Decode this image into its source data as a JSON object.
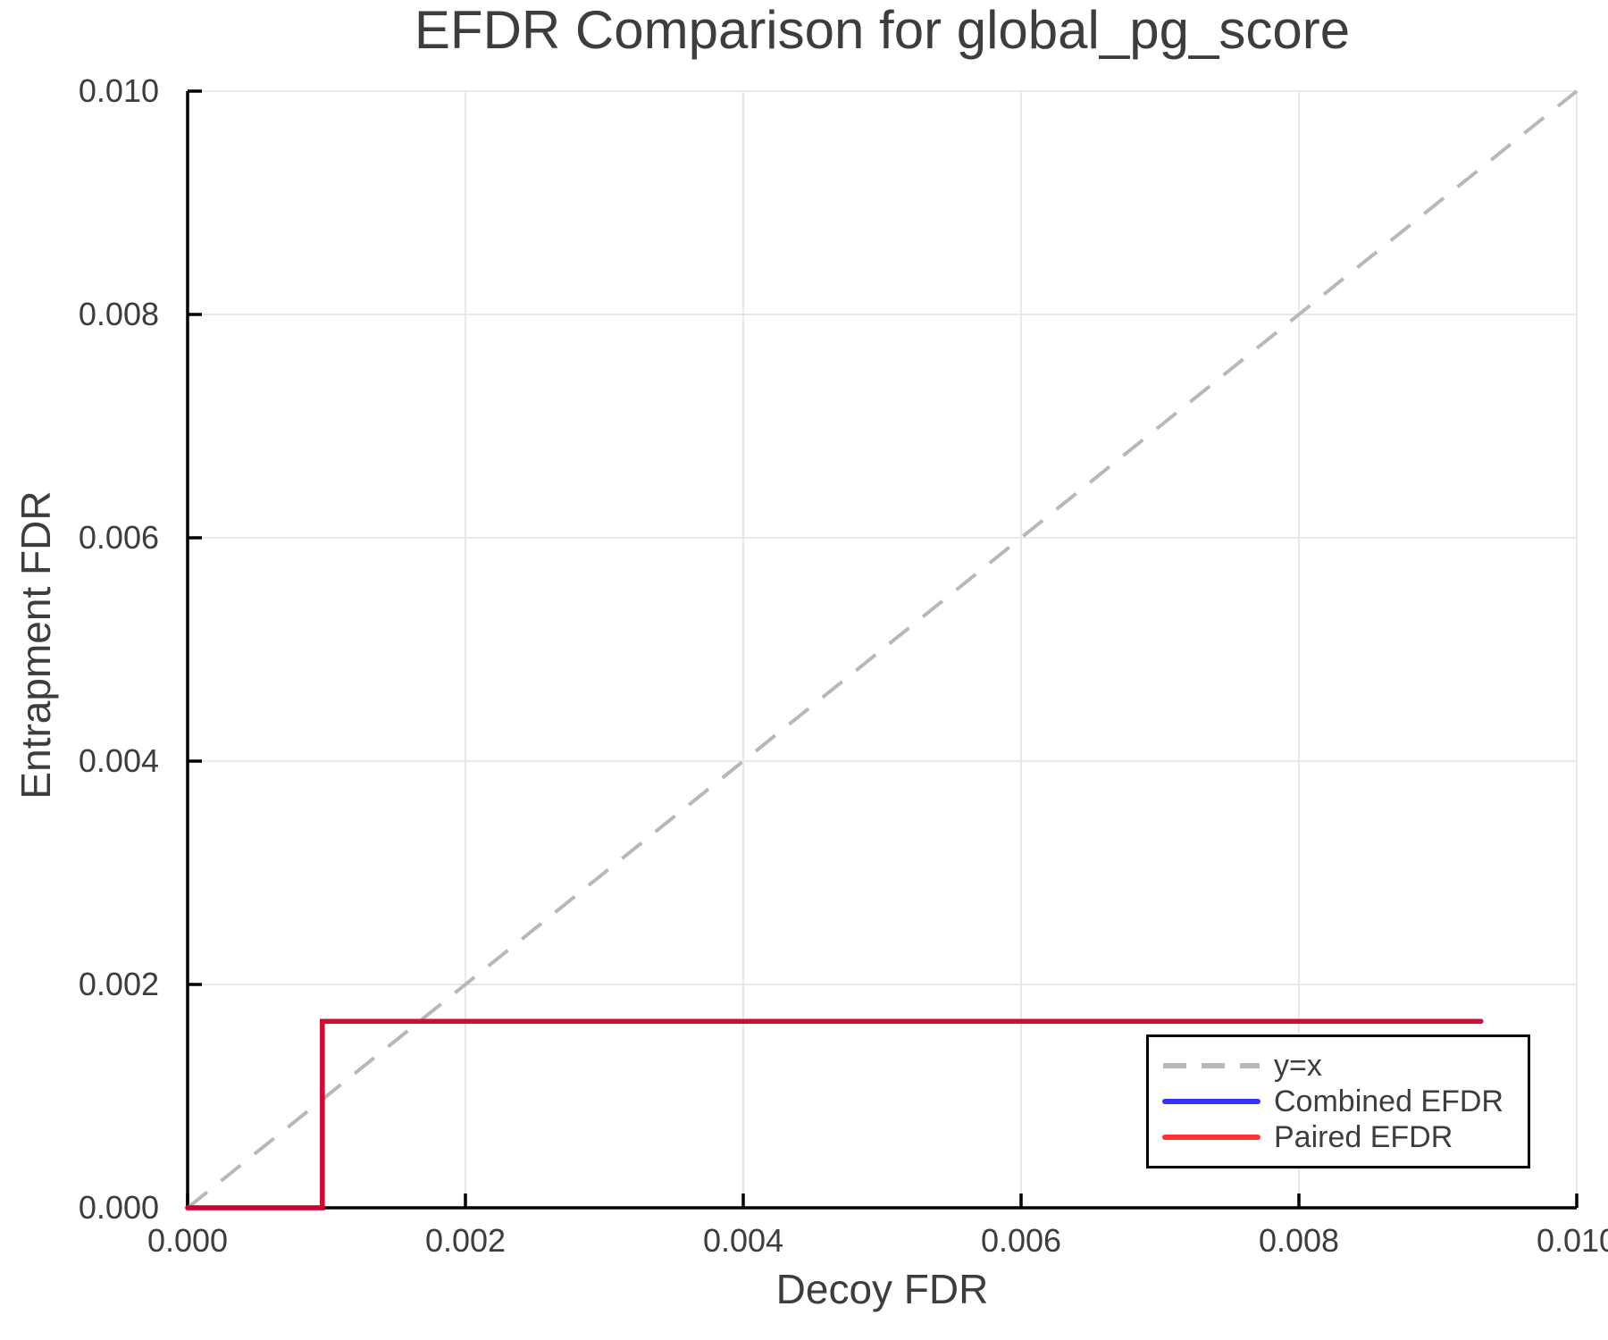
{
  "page": {
    "background": "#ffffff"
  },
  "colors": {
    "text": "#3d3d3d",
    "grid": "#e9e9e9",
    "axis": "#000000",
    "legend_border": "#000000"
  },
  "chart_data": {
    "type": "line",
    "title": "EFDR Comparison for global_pg_score",
    "xlabel": "Decoy FDR",
    "ylabel": "Entrapment FDR",
    "xlim": [
      0.0,
      0.01
    ],
    "ylim": [
      0.0,
      0.01
    ],
    "xticks": {
      "values": [
        0.0,
        0.002,
        0.004,
        0.006,
        0.008,
        0.01
      ],
      "labels": [
        "0.000",
        "0.002",
        "0.004",
        "0.006",
        "0.008",
        "0.010"
      ]
    },
    "yticks": {
      "values": [
        0.0,
        0.002,
        0.004,
        0.006,
        0.008,
        0.01
      ],
      "labels": [
        "0.000",
        "0.002",
        "0.004",
        "0.006",
        "0.008",
        "0.010"
      ]
    },
    "grid": true,
    "tick_direction": "in",
    "legend_position": "lower-right",
    "series": [
      {
        "name": "y=x",
        "color": "#b8b8b8",
        "style": "dashed",
        "opacity": 1,
        "points": [
          [
            0.0,
            0.0
          ],
          [
            0.01,
            0.01
          ]
        ]
      },
      {
        "name": "Combined EFDR",
        "color": "#0000ff",
        "style": "solid",
        "opacity": 0.8,
        "points": [
          [
            0.0,
            0.0
          ],
          [
            0.00097,
            0.0
          ],
          [
            0.00097,
            0.00167
          ],
          [
            0.00931,
            0.00167
          ]
        ]
      },
      {
        "name": "Paired EFDR",
        "color": "#ff0000",
        "style": "solid",
        "opacity": 0.8,
        "points": [
          [
            0.0,
            0.0
          ],
          [
            0.00097,
            0.0
          ],
          [
            0.00097,
            0.00167
          ],
          [
            0.00931,
            0.00167
          ]
        ]
      }
    ]
  }
}
